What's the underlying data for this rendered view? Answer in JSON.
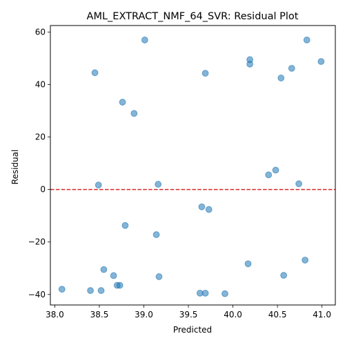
{
  "chart_data": {
    "type": "scatter",
    "title": "AML_EXTRACT_NMF_64_SVR: Residual Plot",
    "xlabel": "Predicted",
    "ylabel": "Residual",
    "xlim": [
      37.95,
      41.15
    ],
    "ylim": [
      -44,
      62.5
    ],
    "xticks": [
      38.0,
      38.5,
      39.0,
      39.5,
      40.0,
      40.5,
      41.0
    ],
    "xtick_labels": [
      "38.0",
      "38.5",
      "39.0",
      "39.5",
      "40.0",
      "40.5",
      "41.0"
    ],
    "yticks": [
      -40,
      -20,
      0,
      20,
      40,
      60
    ],
    "ytick_labels": [
      "−40",
      "−20",
      "0",
      "20",
      "40",
      "60"
    ],
    "reference_line": {
      "y": 0,
      "style": "dashed",
      "color": "#d62728"
    },
    "point_color": "#1f77b4",
    "grid": false,
    "points": [
      {
        "x": 38.08,
        "y": -38.0
      },
      {
        "x": 38.4,
        "y": -38.5
      },
      {
        "x": 38.45,
        "y": 44.5
      },
      {
        "x": 38.49,
        "y": 1.7
      },
      {
        "x": 38.52,
        "y": -38.5
      },
      {
        "x": 38.55,
        "y": -30.5
      },
      {
        "x": 38.66,
        "y": -32.8
      },
      {
        "x": 38.7,
        "y": -36.5
      },
      {
        "x": 38.73,
        "y": -36.5
      },
      {
        "x": 38.76,
        "y": 33.3
      },
      {
        "x": 38.79,
        "y": -13.7
      },
      {
        "x": 38.89,
        "y": 29.0
      },
      {
        "x": 39.01,
        "y": 57.0
      },
      {
        "x": 39.14,
        "y": -17.2
      },
      {
        "x": 39.16,
        "y": 2.0
      },
      {
        "x": 39.17,
        "y": -33.2
      },
      {
        "x": 39.63,
        "y": -39.5
      },
      {
        "x": 39.65,
        "y": -6.6
      },
      {
        "x": 39.69,
        "y": 44.3
      },
      {
        "x": 39.69,
        "y": -39.5
      },
      {
        "x": 39.73,
        "y": -7.6
      },
      {
        "x": 39.91,
        "y": -39.7
      },
      {
        "x": 40.17,
        "y": -28.3
      },
      {
        "x": 40.19,
        "y": 49.5
      },
      {
        "x": 40.19,
        "y": 47.8
      },
      {
        "x": 40.4,
        "y": 5.6
      },
      {
        "x": 40.48,
        "y": 7.4
      },
      {
        "x": 40.54,
        "y": 42.5
      },
      {
        "x": 40.57,
        "y": -32.7
      },
      {
        "x": 40.66,
        "y": 46.2
      },
      {
        "x": 40.74,
        "y": 2.2
      },
      {
        "x": 40.81,
        "y": -26.9
      },
      {
        "x": 40.83,
        "y": 57.0
      },
      {
        "x": 40.99,
        "y": 48.8
      }
    ]
  }
}
